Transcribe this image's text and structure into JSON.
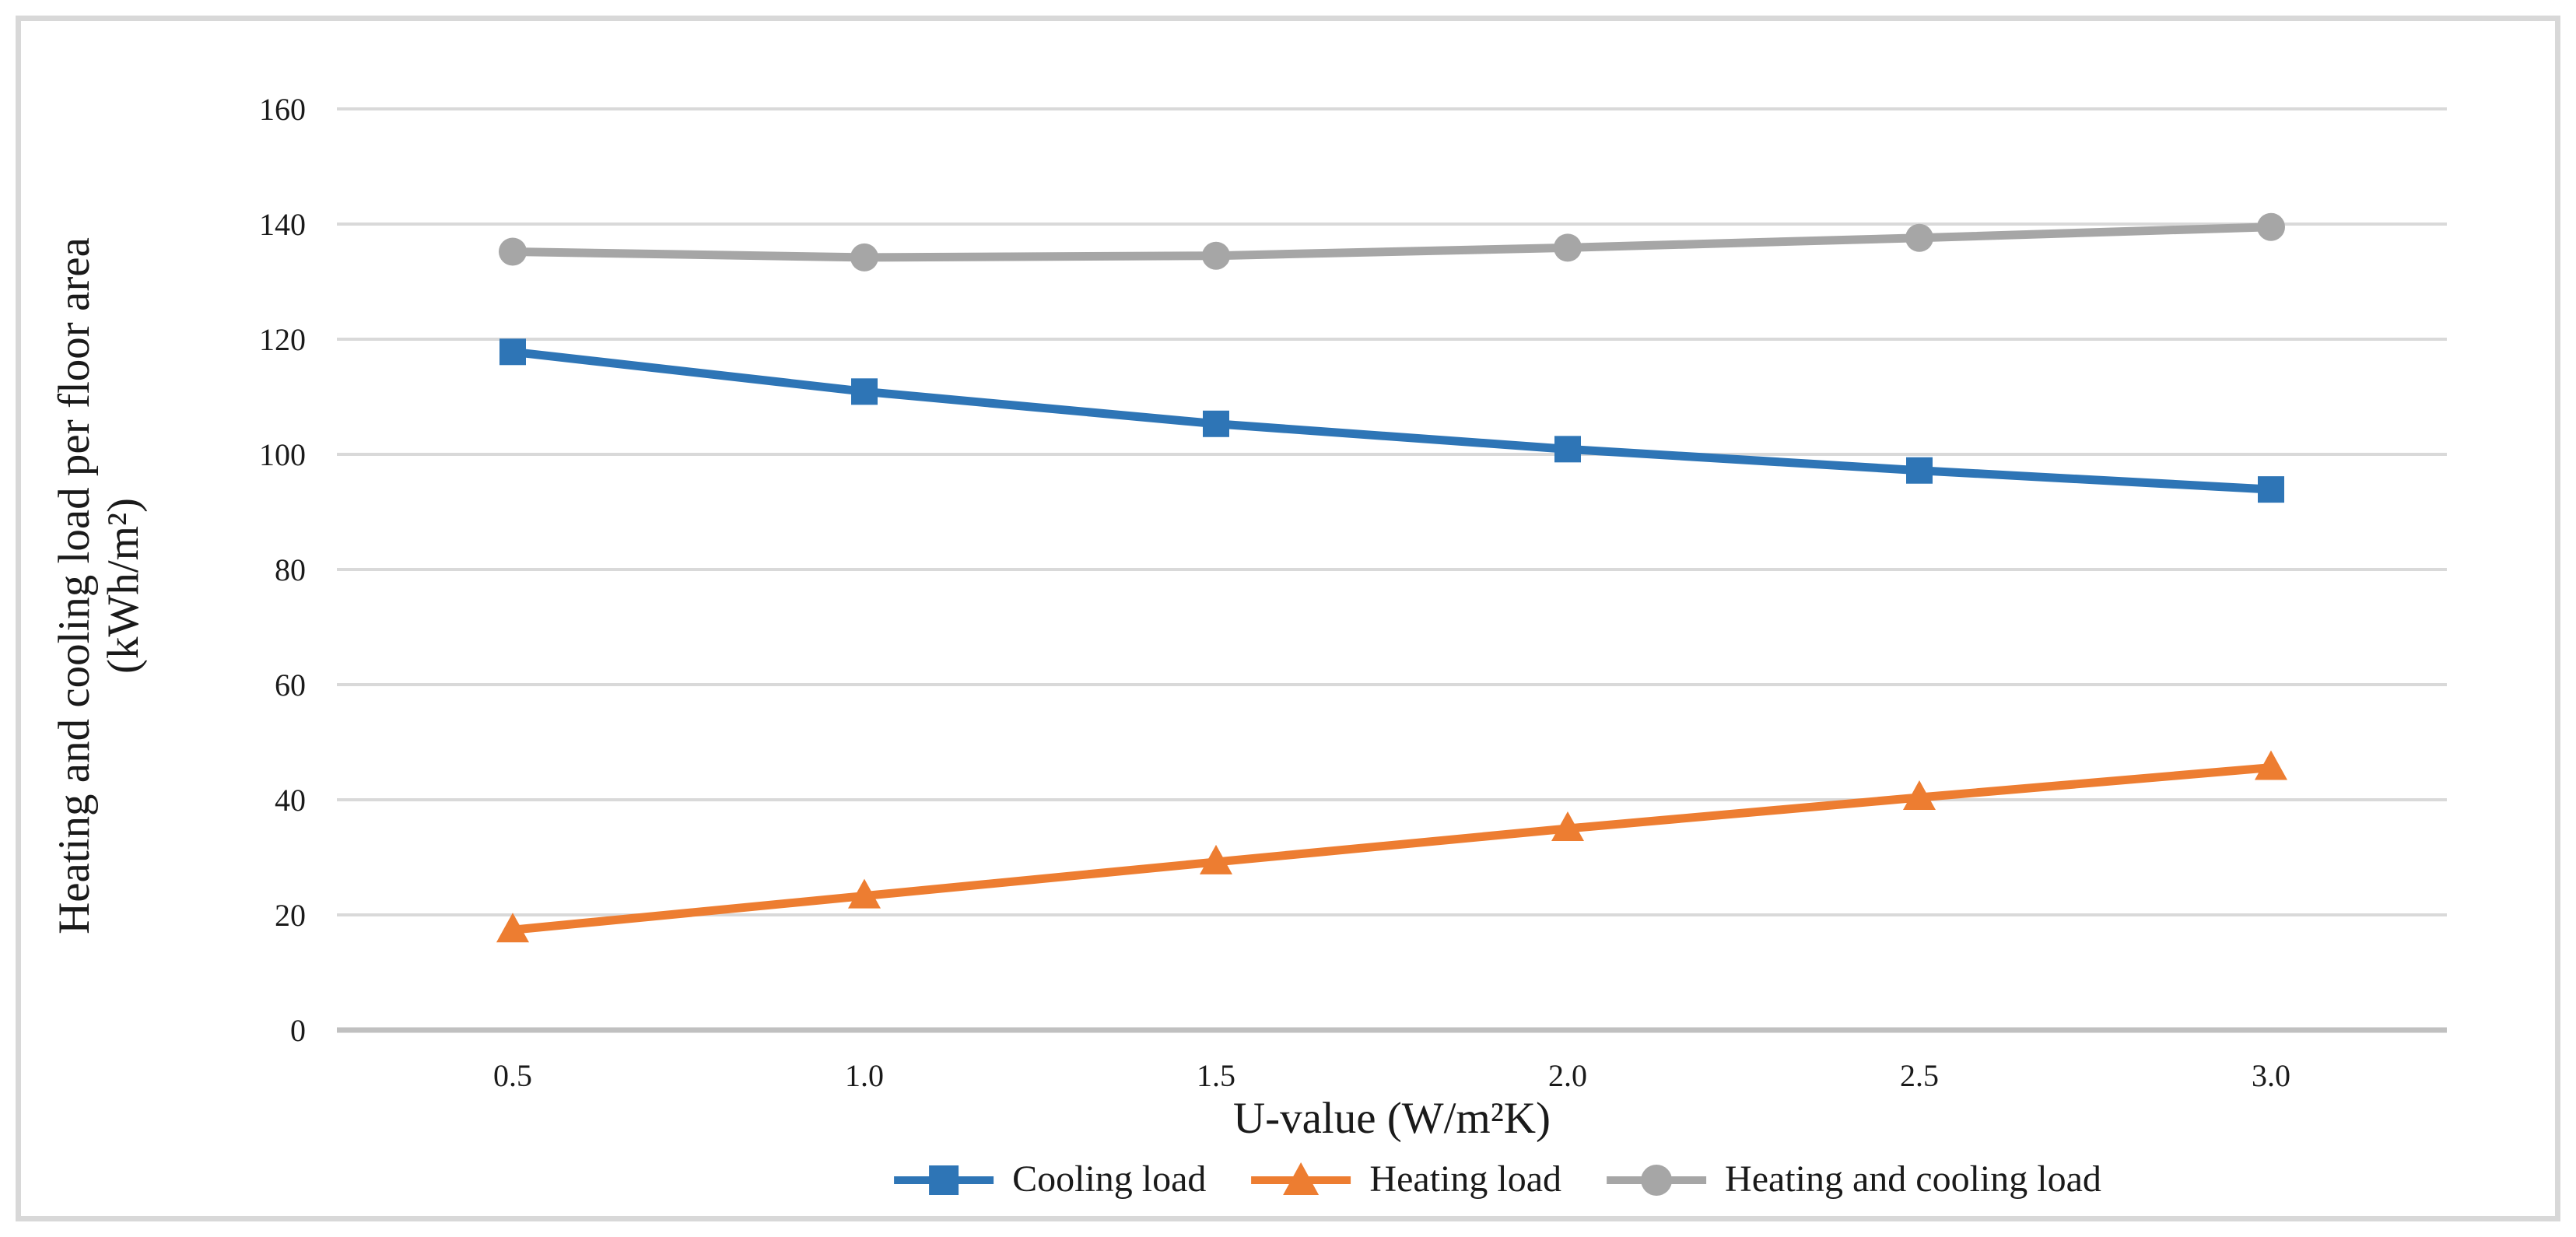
{
  "chart_data": {
    "type": "line",
    "x": [
      0.5,
      1.0,
      1.5,
      2.0,
      2.5,
      3.0
    ],
    "x_tick_labels": [
      "0.5",
      "1.0",
      "1.5",
      "2.0",
      "2.5",
      "3.0"
    ],
    "xlabel": "U-value (W/m²K)",
    "ylabel_line1": "Heating and cooling load per floor area",
    "ylabel_line2": "(kWh/m²)",
    "ylim": [
      0,
      160
    ],
    "y_ticks": [
      0,
      20,
      40,
      60,
      80,
      100,
      120,
      140,
      160
    ],
    "grid": true,
    "legend_position": "bottom",
    "series": [
      {
        "name": "Cooling load",
        "marker": "square",
        "color": "#2E75B6",
        "values": [
          117.8,
          110.9,
          105.3,
          100.9,
          97.2,
          93.9
        ]
      },
      {
        "name": "Heating load",
        "marker": "triangle",
        "color": "#ED7D31",
        "values": [
          17.4,
          23.3,
          29.2,
          35.0,
          40.4,
          45.6
        ]
      },
      {
        "name": "Heating and cooling load",
        "marker": "circle",
        "color": "#A6A6A6",
        "values": [
          135.2,
          134.2,
          134.5,
          135.9,
          137.6,
          139.5
        ]
      }
    ]
  },
  "colors": {
    "background": "#FFFFFF",
    "figure_border": "#D8D8D8",
    "gridline": "#D9D9D9",
    "axis_line": "#C0C0C0",
    "text": "#1A1A1A"
  }
}
